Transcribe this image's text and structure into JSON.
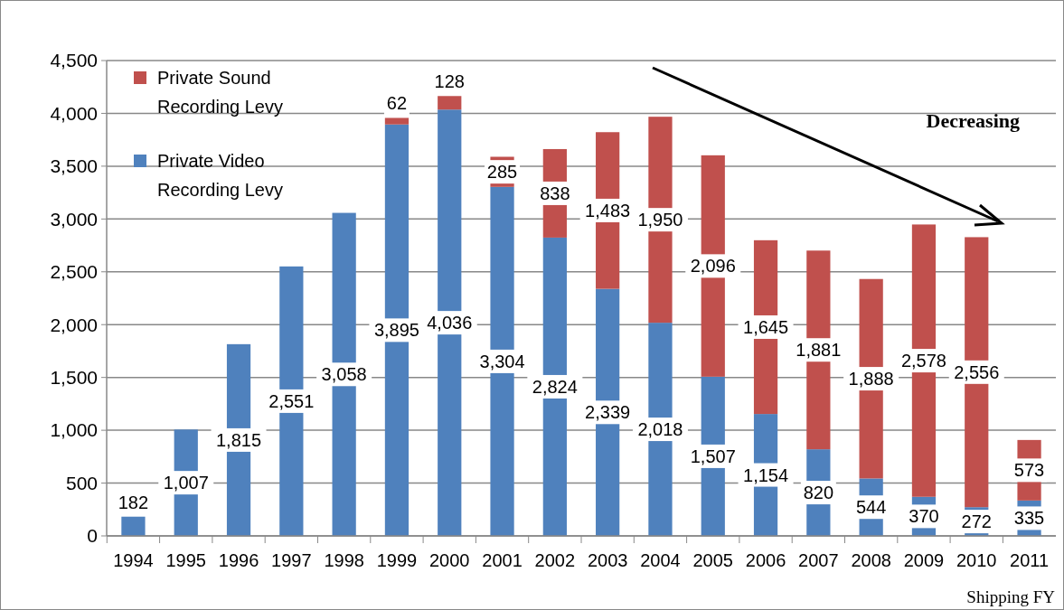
{
  "chart_data": {
    "type": "bar",
    "stacked": true,
    "xlabel": "Shipping FY",
    "categories": [
      "1994",
      "1995",
      "1996",
      "1997",
      "1998",
      "1999",
      "2000",
      "2001",
      "2002",
      "2003",
      "2004",
      "2005",
      "2006",
      "2007",
      "2008",
      "2009",
      "2010",
      "2011"
    ],
    "series": [
      {
        "name": "Private Video Recording Levy",
        "color": "#4f81bd",
        "values": [
          182,
          1007,
          1815,
          2551,
          3058,
          3895,
          4036,
          3304,
          2824,
          2339,
          2018,
          1507,
          1154,
          820,
          544,
          370,
          272,
          335
        ],
        "value_labels": [
          "182",
          "1,007",
          "1,815",
          "2,551",
          "3,058",
          "3,895",
          "4,036",
          "3,304",
          "2,824",
          "2,339",
          "2,018",
          "1,507",
          "1,154",
          "820",
          "544",
          "370",
          "272",
          "335"
        ]
      },
      {
        "name": "Private Sound Recording Levy",
        "color": "#c0504d",
        "values": [
          null,
          null,
          null,
          null,
          null,
          62,
          128,
          285,
          838,
          1483,
          1950,
          2096,
          1645,
          1881,
          1888,
          2578,
          2556,
          573
        ],
        "value_labels": [
          null,
          null,
          null,
          null,
          null,
          "62",
          "128",
          "285",
          "838",
          "1,483",
          "1,950",
          "2,096",
          "1,645",
          "1,881",
          "1,888",
          "2,578",
          "2,556",
          "573"
        ]
      }
    ],
    "ylim": [
      0,
      4500
    ],
    "yticks": [
      0,
      500,
      {
        "value": 1000,
        "label": "1,000"
      },
      {
        "value": 1500,
        "label": "1,500"
      },
      {
        "value": 2000,
        "label": "2,000"
      },
      {
        "value": 2500,
        "label": "2,500"
      },
      {
        "value": 3000,
        "label": "3,000"
      },
      {
        "value": 3500,
        "label": "3,500"
      },
      {
        "value": 4000,
        "label": "4,000"
      },
      {
        "value": 4500,
        "label": "4,500"
      }
    ],
    "grid": "y",
    "legend": "top left",
    "annotations": [
      "Decreasing"
    ]
  }
}
